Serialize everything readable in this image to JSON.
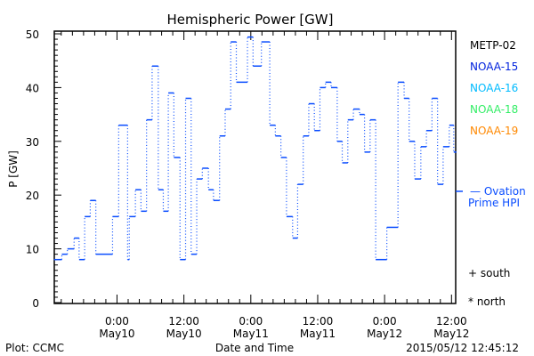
{
  "chart_data": {
    "type": "line",
    "title": "Hemispheric Power [GW]",
    "xlabel": "Date and Time",
    "ylabel": "P [GW]",
    "ylim": [
      0,
      50
    ],
    "yticks": [
      0,
      10,
      20,
      30,
      40,
      50
    ],
    "x_units": "hours since 2015-05-10 00:00",
    "xlim": [
      -11.25,
      60.75
    ],
    "xticks": [
      {
        "t": 0,
        "line1": "0:00",
        "line2": "May10"
      },
      {
        "t": 12,
        "line1": "12:00",
        "line2": "May10"
      },
      {
        "t": 24,
        "line1": "0:00",
        "line2": "May11"
      },
      {
        "t": 36,
        "line1": "12:00",
        "line2": "May11"
      },
      {
        "t": 48,
        "line1": "0:00",
        "line2": "May12"
      },
      {
        "t": 60,
        "line1": "12:00",
        "line2": "May12"
      }
    ],
    "series": [
      {
        "name": "NOAA-15",
        "style": "step",
        "color": "#0a4dff",
        "end_t": 60.9,
        "points": [
          [
            -11.3,
            8
          ],
          [
            -9.9,
            9
          ],
          [
            -8.9,
            10
          ],
          [
            -7.7,
            12
          ],
          [
            -6.8,
            8
          ],
          [
            -5.8,
            16
          ],
          [
            -4.8,
            19
          ],
          [
            -3.8,
            9
          ],
          [
            -0.8,
            16
          ],
          [
            0.3,
            33
          ],
          [
            1.9,
            8
          ],
          [
            2.2,
            16
          ],
          [
            3.3,
            21
          ],
          [
            4.3,
            17
          ],
          [
            5.3,
            34
          ],
          [
            6.3,
            44
          ],
          [
            7.4,
            21
          ],
          [
            8.3,
            17
          ],
          [
            9.2,
            39
          ],
          [
            10.2,
            27
          ],
          [
            11.3,
            8
          ],
          [
            12.3,
            38
          ],
          [
            13.3,
            9
          ],
          [
            14.3,
            23
          ],
          [
            15.3,
            25
          ],
          [
            16.4,
            21
          ],
          [
            17.3,
            19
          ],
          [
            18.4,
            31
          ],
          [
            19.4,
            36
          ],
          [
            20.4,
            48.5
          ],
          [
            21.4,
            41
          ],
          [
            23.4,
            49.4
          ],
          [
            24.4,
            44
          ],
          [
            25.9,
            48.5
          ],
          [
            27.4,
            33
          ],
          [
            28.4,
            31
          ],
          [
            29.4,
            27
          ],
          [
            30.4,
            16
          ],
          [
            31.5,
            12
          ],
          [
            32.4,
            22
          ],
          [
            33.4,
            31
          ],
          [
            34.4,
            37
          ],
          [
            35.4,
            32
          ],
          [
            36.4,
            40
          ],
          [
            37.4,
            41
          ],
          [
            38.4,
            40
          ],
          [
            39.5,
            30
          ],
          [
            40.4,
            26
          ],
          [
            41.4,
            34
          ],
          [
            42.4,
            36
          ],
          [
            43.5,
            35
          ],
          [
            44.4,
            28
          ],
          [
            45.4,
            34
          ],
          [
            46.4,
            8
          ],
          [
            48.4,
            14
          ],
          [
            50.4,
            41
          ],
          [
            51.5,
            38
          ],
          [
            52.4,
            30
          ],
          [
            53.4,
            23
          ],
          [
            54.5,
            29
          ],
          [
            55.5,
            32
          ],
          [
            56.5,
            38
          ],
          [
            57.5,
            22
          ],
          [
            58.5,
            29
          ],
          [
            59.6,
            33
          ],
          [
            60.4,
            28
          ]
        ]
      }
    ],
    "ovation_prime_hpi": {
      "value": 20.7,
      "label_line1": "— Ovation",
      "label_line2": "Prime HPI",
      "color": "#0a4dff"
    },
    "legend": [
      {
        "name": "METP-02",
        "color": "#000000"
      },
      {
        "name": "NOAA-15",
        "color": "#0022dd"
      },
      {
        "name": "NOAA-16",
        "color": "#00bbff"
      },
      {
        "name": "NOAA-18",
        "color": "#33ee66"
      },
      {
        "name": "NOAA-19",
        "color": "#ff8800"
      }
    ],
    "legend_placement": "right",
    "markers_legend": [
      "+ south",
      "* north"
    ]
  },
  "footer": {
    "left": "Plot: CCMC",
    "timestamp": "2015/05/12 12:45:12"
  }
}
